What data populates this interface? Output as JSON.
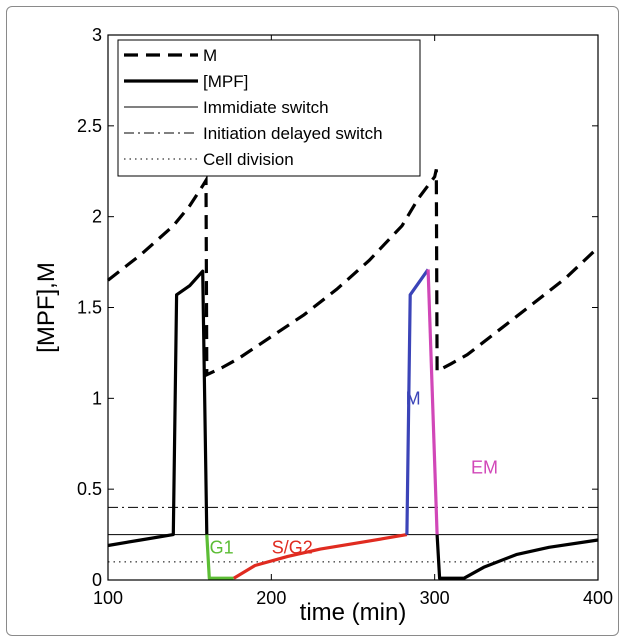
{
  "chart_data": {
    "type": "line",
    "xlabel": "time (min)",
    "ylabel": "[MPF],M",
    "xlim": [
      100,
      400
    ],
    "ylim": [
      0,
      3
    ],
    "x_ticks": [
      "100",
      "200",
      "300",
      "400"
    ],
    "y_ticks": [
      "0",
      "0.5",
      "1",
      "1.5",
      "2",
      "2.5",
      "3"
    ],
    "legend": {
      "placement": "top-left",
      "entries": [
        "M",
        "[MPF]",
        "Immidiate switch",
        "Initiation delayed switch",
        "Cell division"
      ]
    },
    "reference_lines": [
      {
        "name": "Immidiate switch",
        "y": 0.25,
        "style": "solid"
      },
      {
        "name": "Initiation delayed switch",
        "y": 0.4,
        "style": "dashdot"
      },
      {
        "name": "Cell division",
        "y": 0.1,
        "style": "dotted"
      }
    ],
    "series": [
      {
        "name": "M",
        "style": "dashed",
        "color": "#000000",
        "x": [
          100,
          110,
          120,
          130,
          140,
          150,
          158,
          160,
          160.5,
          170,
          180,
          200,
          220,
          240,
          260,
          280,
          290,
          300,
          301,
          301.5,
          310,
          320,
          340,
          360,
          380,
          400
        ],
        "y": [
          1.65,
          1.72,
          1.79,
          1.87,
          1.95,
          2.06,
          2.17,
          2.2,
          1.13,
          1.17,
          1.22,
          1.34,
          1.46,
          1.6,
          1.76,
          1.95,
          2.1,
          2.22,
          2.26,
          1.15,
          1.19,
          1.24,
          1.38,
          1.52,
          1.66,
          1.83
        ]
      },
      {
        "name": "[MPF]",
        "style": "solid",
        "color": "#000000",
        "segments": [
          {
            "label": "",
            "color": "#000000",
            "x": [
              100,
              120,
              140,
              142,
              150,
              158,
              160.5
            ],
            "y": [
              0.19,
              0.22,
              0.25,
              1.57,
              1.62,
              1.7,
              0.25
            ]
          },
          {
            "label": "G1",
            "color": "#5cbd35",
            "x": [
              160.5,
              162,
              170,
              177
            ],
            "y": [
              0.25,
              0.01,
              0.01,
              0.01
            ]
          },
          {
            "label": "S/G2",
            "color": "#e02b20",
            "x": [
              177,
              190,
              210,
              230,
              250,
              270,
              283
            ],
            "y": [
              0.01,
              0.08,
              0.13,
              0.17,
              0.2,
              0.23,
              0.25
            ]
          },
          {
            "label": "M",
            "color": "#3b44b8",
            "x": [
              283,
              285,
              296
            ],
            "y": [
              0.25,
              1.57,
              1.71
            ]
          },
          {
            "label": "EM",
            "color": "#d147b8",
            "x": [
              296,
              301.5
            ],
            "y": [
              1.71,
              0.25
            ]
          },
          {
            "label": "",
            "color": "#000000",
            "x": [
              301.5,
              303,
              318,
              330,
              350,
              370,
              400
            ],
            "y": [
              0.25,
              0.01,
              0.01,
              0.07,
              0.14,
              0.18,
              0.22
            ]
          }
        ]
      }
    ],
    "annotations": [
      {
        "text": "G1",
        "x": 150,
        "y": 0.18,
        "color": "#5cbd35"
      },
      {
        "text": "S/G2",
        "x": 188,
        "y": 0.18,
        "color": "#e02b20"
      },
      {
        "text": "M",
        "x": 270,
        "y": 1.0,
        "color": "#3b44b8"
      },
      {
        "text": "EM",
        "x": 310,
        "y": 0.62,
        "color": "#d147b8"
      }
    ]
  }
}
